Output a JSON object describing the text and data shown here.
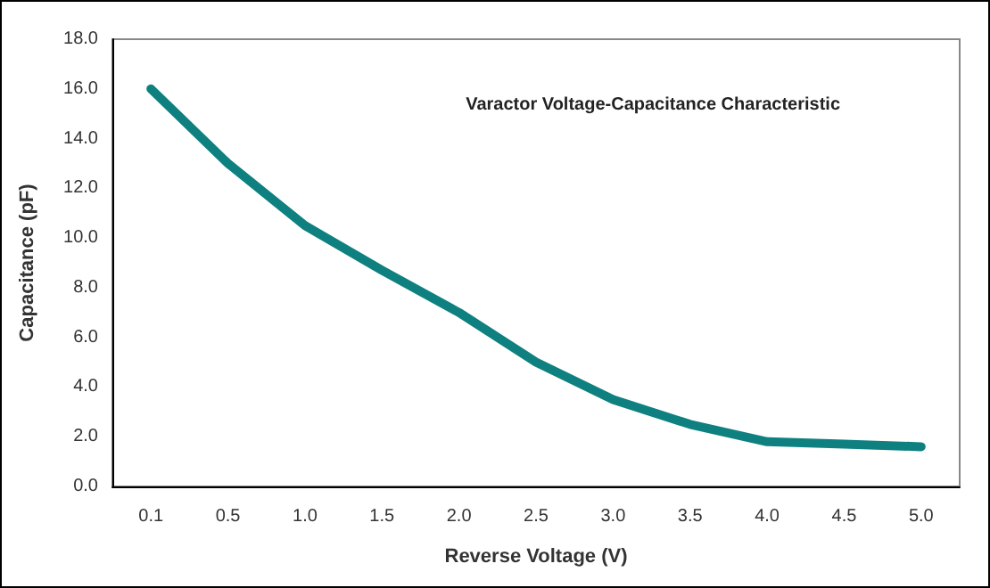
{
  "chart_data": {
    "type": "line",
    "title": "Varactor Voltage-Capacitance Characteristic",
    "xlabel": "Reverse Voltage (V)",
    "ylabel": "Capacitance (pF)",
    "categories": [
      "0.1",
      "0.5",
      "1.0",
      "1.5",
      "2.0",
      "2.5",
      "3.0",
      "3.5",
      "4.0",
      "4.5",
      "5.0"
    ],
    "series": [
      {
        "color": "#0f8080",
        "values": [
          16.0,
          13.0,
          10.5,
          8.7,
          7.0,
          5.0,
          3.5,
          2.5,
          1.8,
          1.7,
          1.6
        ]
      }
    ],
    "ylim": [
      0,
      18
    ],
    "yticks": [
      {
        "value": 0,
        "label": "0.0"
      },
      {
        "value": 2,
        "label": "2.0"
      },
      {
        "value": 4,
        "label": "4.0"
      },
      {
        "value": 6,
        "label": "6.0"
      },
      {
        "value": 8,
        "label": "8.0"
      },
      {
        "value": 10,
        "label": "10.0"
      },
      {
        "value": 12,
        "label": "12.0"
      },
      {
        "value": 14,
        "label": "14.0"
      },
      {
        "value": 16,
        "label": "16.0"
      },
      {
        "value": 18,
        "label": "18.0"
      }
    ],
    "grid": false,
    "marker": "none",
    "line_style": "solid"
  }
}
